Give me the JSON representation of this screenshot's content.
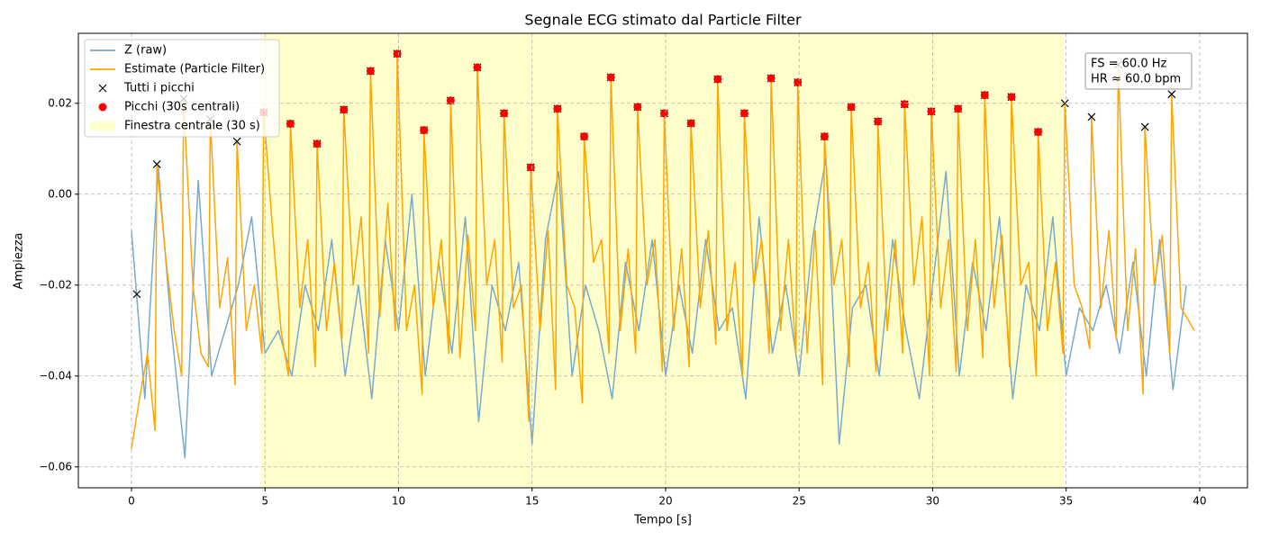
{
  "chart_data": {
    "type": "line",
    "title": "Segnale ECG stimato dal Particle Filter",
    "xlabel": "Tempo [s]",
    "ylabel": "Ampiezza",
    "xlim": [
      -1.99,
      41.79
    ],
    "ylim": [
      -0.0646,
      0.0354
    ],
    "xticks": [
      0,
      5,
      10,
      15,
      20,
      25,
      30,
      35,
      40
    ],
    "yticks": [
      {
        "value": -0.06,
        "label": "−0.06"
      },
      {
        "value": -0.04,
        "label": "−0.04"
      },
      {
        "value": -0.02,
        "label": "−0.02"
      },
      {
        "value": 0,
        "label": "0.00"
      },
      {
        "value": 0.02,
        "label": "0.02"
      }
    ],
    "grid": true,
    "legend": "upper left",
    "annotations": [
      "FS = 60.0 Hz",
      "HR ≈ 60.0 bpm"
    ],
    "series": [
      {
        "name": "Z (raw)",
        "kind": "line",
        "color": "#77aacc",
        "x": [
          0,
          0.5,
          1,
          1.5,
          2,
          2.5,
          3,
          3.5,
          4,
          4.5,
          5,
          5.5,
          6,
          6.5,
          7,
          7.5,
          8,
          8.5,
          9,
          9.5,
          10,
          10.5,
          11,
          11.5,
          12,
          12.5,
          13,
          13.5,
          14,
          14.5,
          15,
          15.5,
          16,
          16.5,
          17,
          17.5,
          18,
          18.5,
          19,
          19.5,
          20,
          20.5,
          21,
          21.5,
          22,
          22.5,
          23,
          23.5,
          24,
          24.5,
          25,
          25.5,
          26,
          26.5,
          27,
          27.5,
          28,
          28.5,
          29,
          29.5,
          30,
          30.5,
          31,
          31.5,
          32,
          32.5,
          33,
          33.5,
          34,
          34.5,
          35,
          35.5,
          36,
          36.5,
          37,
          37.5,
          38,
          38.5,
          39,
          39.5
        ],
        "values": [
          -0.008,
          -0.045,
          0.006,
          -0.03,
          -0.058,
          0.003,
          -0.04,
          -0.03,
          -0.02,
          -0.005,
          -0.035,
          -0.03,
          -0.04,
          -0.02,
          -0.03,
          -0.01,
          -0.04,
          -0.02,
          -0.045,
          -0.01,
          -0.03,
          0.0,
          -0.04,
          -0.015,
          -0.035,
          -0.005,
          -0.05,
          -0.02,
          -0.03,
          -0.015,
          -0.055,
          -0.01,
          0.005,
          -0.04,
          -0.02,
          -0.03,
          -0.045,
          -0.015,
          -0.03,
          -0.01,
          -0.04,
          -0.02,
          -0.035,
          -0.01,
          -0.03,
          -0.025,
          -0.045,
          -0.005,
          -0.035,
          -0.02,
          -0.04,
          -0.01,
          0.008,
          -0.055,
          -0.025,
          -0.02,
          -0.04,
          -0.01,
          -0.03,
          -0.045,
          -0.02,
          0.005,
          -0.04,
          -0.015,
          -0.03,
          -0.005,
          -0.045,
          -0.02,
          -0.03,
          -0.005,
          -0.04,
          -0.025,
          -0.03,
          -0.02,
          -0.035,
          -0.015,
          -0.04,
          -0.01,
          -0.043,
          -0.02
        ]
      },
      {
        "name": "Estimate (Particle Filter)",
        "kind": "line",
        "color": "#ffa500",
        "x": [
          0,
          0.3,
          0.6,
          0.88,
          0.95,
          1.3,
          1.6,
          1.88,
          1.95,
          2.3,
          2.6,
          2.88,
          2.95,
          3.3,
          3.6,
          3.88,
          3.95,
          4.3,
          4.6,
          4.88,
          4.95,
          5.3,
          5.6,
          5.88,
          5.95,
          6.3,
          6.6,
          6.88,
          6.95,
          7.3,
          7.6,
          7.88,
          7.95,
          8.3,
          8.6,
          8.88,
          8.95,
          9.3,
          9.6,
          9.88,
          9.95,
          10.3,
          10.6,
          10.88,
          10.95,
          11.3,
          11.6,
          11.88,
          11.95,
          12.3,
          12.6,
          12.88,
          12.95,
          13.3,
          13.6,
          13.88,
          13.95,
          14.3,
          14.6,
          14.88,
          14.95,
          15.3,
          15.6,
          15.88,
          15.95,
          16.3,
          16.6,
          16.88,
          16.95,
          17.3,
          17.6,
          17.88,
          17.95,
          18.3,
          18.6,
          18.88,
          18.95,
          19.3,
          19.6,
          19.88,
          19.95,
          20.3,
          20.6,
          20.88,
          20.95,
          21.3,
          21.6,
          21.88,
          21.95,
          22.3,
          22.6,
          22.88,
          22.95,
          23.3,
          23.6,
          23.88,
          23.95,
          24.3,
          24.6,
          24.88,
          24.95,
          25.3,
          25.6,
          25.88,
          25.95,
          26.3,
          26.6,
          26.88,
          26.95,
          27.3,
          27.6,
          27.88,
          27.95,
          28.3,
          28.6,
          28.88,
          28.95,
          29.3,
          29.6,
          29.88,
          29.95,
          30.3,
          30.6,
          30.88,
          30.95,
          31.3,
          31.6,
          31.88,
          31.95,
          32.3,
          32.6,
          32.88,
          32.95,
          33.3,
          33.6,
          33.88,
          33.95,
          34.3,
          34.6,
          34.88,
          34.95,
          35.3,
          35.6,
          35.88,
          35.95,
          36.3,
          36.6,
          36.88,
          36.95,
          37.3,
          37.6,
          37.88,
          37.95,
          38.3,
          38.6,
          38.88,
          38.95,
          39.3,
          39.8
        ],
        "values": [
          -0.056,
          -0.045,
          -0.035,
          -0.052,
          0.0066,
          -0.015,
          -0.03,
          -0.04,
          0.021,
          -0.02,
          -0.035,
          -0.038,
          0.0165,
          -0.025,
          -0.014,
          -0.042,
          0.0116,
          -0.03,
          -0.02,
          -0.035,
          0.018,
          -0.009,
          -0.03,
          -0.04,
          0.0155,
          -0.025,
          -0.01,
          -0.038,
          0.0111,
          -0.03,
          -0.015,
          -0.032,
          0.0186,
          -0.02,
          -0.005,
          -0.035,
          0.0271,
          -0.027,
          -0.002,
          -0.03,
          0.0309,
          -0.03,
          -0.02,
          -0.044,
          0.0141,
          -0.025,
          -0.01,
          -0.035,
          0.0206,
          -0.036,
          -0.009,
          -0.03,
          0.0279,
          -0.02,
          -0.01,
          -0.037,
          0.0178,
          -0.025,
          -0.02,
          -0.05,
          0.0059,
          -0.03,
          -0.008,
          -0.043,
          0.0188,
          -0.02,
          -0.025,
          -0.046,
          0.0127,
          -0.015,
          -0.01,
          -0.035,
          0.0257,
          -0.03,
          -0.012,
          -0.035,
          0.0192,
          -0.02,
          -0.01,
          -0.039,
          0.0178,
          -0.03,
          -0.012,
          -0.038,
          0.0156,
          -0.025,
          -0.008,
          -0.033,
          0.0253,
          -0.03,
          -0.015,
          -0.04,
          0.0178,
          -0.02,
          -0.01,
          -0.035,
          0.0255,
          -0.03,
          -0.01,
          -0.035,
          0.0246,
          -0.035,
          -0.008,
          -0.042,
          0.0127,
          -0.02,
          -0.01,
          -0.038,
          0.0192,
          -0.025,
          -0.015,
          -0.039,
          0.016,
          -0.03,
          -0.01,
          -0.035,
          0.0198,
          -0.02,
          -0.005,
          -0.04,
          0.0182,
          -0.025,
          -0.01,
          -0.039,
          0.0188,
          -0.03,
          -0.01,
          -0.036,
          0.0218,
          -0.025,
          -0.009,
          -0.038,
          0.0214,
          -0.02,
          -0.015,
          -0.04,
          0.0137,
          -0.03,
          -0.015,
          -0.035,
          0.02,
          -0.02,
          -0.025,
          -0.034,
          0.017,
          -0.025,
          -0.008,
          -0.032,
          0.0285,
          -0.03,
          -0.012,
          -0.044,
          0.0148,
          -0.02,
          -0.009,
          -0.035,
          0.022,
          -0.025,
          -0.03
        ]
      },
      {
        "name": "Tutti i picchi",
        "kind": "scatter",
        "marker": "x",
        "color": "#000000",
        "x": [
          0.2,
          0.95,
          1.95,
          2.95,
          3.95,
          4.95,
          5.95,
          6.95,
          7.95,
          8.95,
          9.95,
          10.95,
          11.95,
          12.95,
          13.95,
          14.95,
          15.95,
          16.95,
          17.95,
          18.95,
          19.95,
          20.95,
          21.95,
          22.95,
          23.95,
          24.95,
          25.95,
          26.95,
          27.95,
          28.95,
          29.95,
          30.95,
          31.95,
          32.95,
          33.95,
          34.95,
          35.95,
          36.95,
          37.95,
          38.95
        ],
        "values": [
          -0.022,
          0.0066,
          0.021,
          0.0165,
          0.0116,
          0.018,
          0.0155,
          0.0111,
          0.0186,
          0.0271,
          0.0309,
          0.0141,
          0.0206,
          0.0279,
          0.0178,
          0.0059,
          0.0188,
          0.0127,
          0.0257,
          0.0192,
          0.0178,
          0.0156,
          0.0253,
          0.0178,
          0.0255,
          0.0246,
          0.0127,
          0.0192,
          0.016,
          0.0198,
          0.0182,
          0.0188,
          0.0218,
          0.0214,
          0.0137,
          0.02,
          0.017,
          0.0285,
          0.0148,
          0.022
        ]
      },
      {
        "name": "Picchi (30s centrali)",
        "kind": "scatter",
        "marker": "o",
        "color": "#ff0000",
        "x": [
          4.95,
          5.95,
          6.95,
          7.95,
          8.95,
          9.95,
          10.95,
          11.95,
          12.95,
          13.95,
          14.95,
          15.95,
          16.95,
          17.95,
          18.95,
          19.95,
          20.95,
          21.95,
          22.95,
          23.95,
          24.95,
          25.95,
          26.95,
          27.95,
          28.95,
          29.95,
          30.95,
          31.95,
          32.95,
          33.95
        ],
        "values": [
          0.018,
          0.0155,
          0.0111,
          0.0186,
          0.0271,
          0.0309,
          0.0141,
          0.0206,
          0.0279,
          0.0178,
          0.0059,
          0.0188,
          0.0127,
          0.0257,
          0.0192,
          0.0178,
          0.0156,
          0.0253,
          0.0178,
          0.0255,
          0.0246,
          0.0127,
          0.0192,
          0.016,
          0.0198,
          0.0182,
          0.0188,
          0.0218,
          0.0214,
          0.0137
        ]
      },
      {
        "name": "Finestra centrale (30 s)",
        "kind": "span",
        "color": "#ffffcc",
        "x": [
          4.85,
          34.9
        ]
      }
    ]
  }
}
